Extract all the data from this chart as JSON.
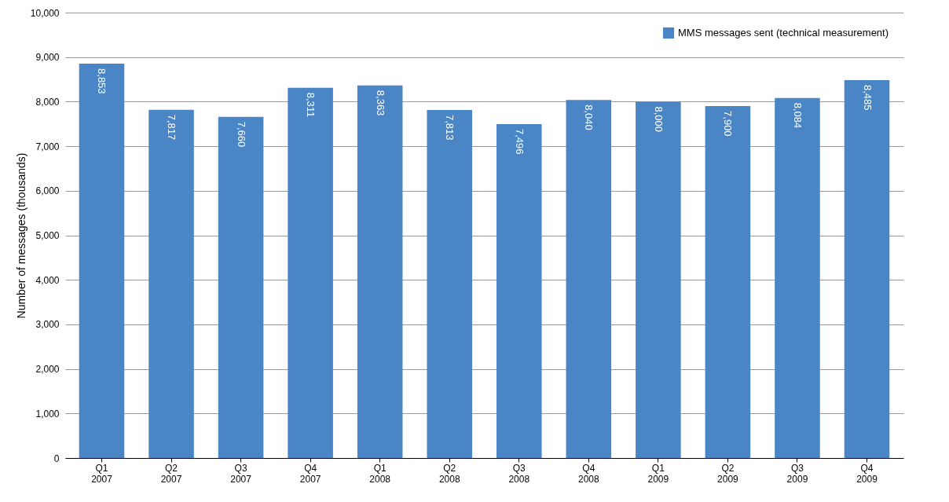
{
  "chart_data": {
    "type": "bar",
    "ylabel": "Number of messages (thousands)",
    "categories": [
      "Q1\n2007",
      "Q2\n2007",
      "Q3\n2007",
      "Q4\n2007",
      "Q1\n2008",
      "Q2\n2008",
      "Q3\n2008",
      "Q4\n2008",
      "Q1\n2009",
      "Q2\n2009",
      "Q3\n2009",
      "Q4\n2009"
    ],
    "series": [
      {
        "name": "MMS messages sent (technical measurement)",
        "color": "#4a86c6",
        "values": [
          8853,
          7817,
          7660,
          8311,
          8363,
          7813,
          7496,
          8040,
          8000,
          7900,
          8084,
          8485
        ],
        "value_labels": [
          "8,853",
          "7,817",
          "7,660",
          "8,311",
          "8,363",
          "7,813",
          "7,496",
          "8,040",
          "8,000",
          "7,900",
          "8,084",
          "8,485"
        ]
      }
    ],
    "ylim": [
      0,
      10000
    ],
    "yticks": [
      0,
      {
        "value": 1000,
        "label": "1,000"
      },
      {
        "value": 2000,
        "label": "2,000"
      },
      {
        "value": 3000,
        "label": "3,000"
      },
      {
        "value": 4000,
        "label": "4,000"
      },
      {
        "value": 5000,
        "label": "5,000"
      },
      {
        "value": 6000,
        "label": "6,000"
      },
      {
        "value": 7000,
        "label": "7,000"
      },
      {
        "value": 8000,
        "label": "8,000"
      },
      {
        "value": 9000,
        "label": "9,000"
      },
      {
        "value": 10000,
        "label": "10,000"
      }
    ],
    "grid": "y",
    "legend": "top right"
  }
}
